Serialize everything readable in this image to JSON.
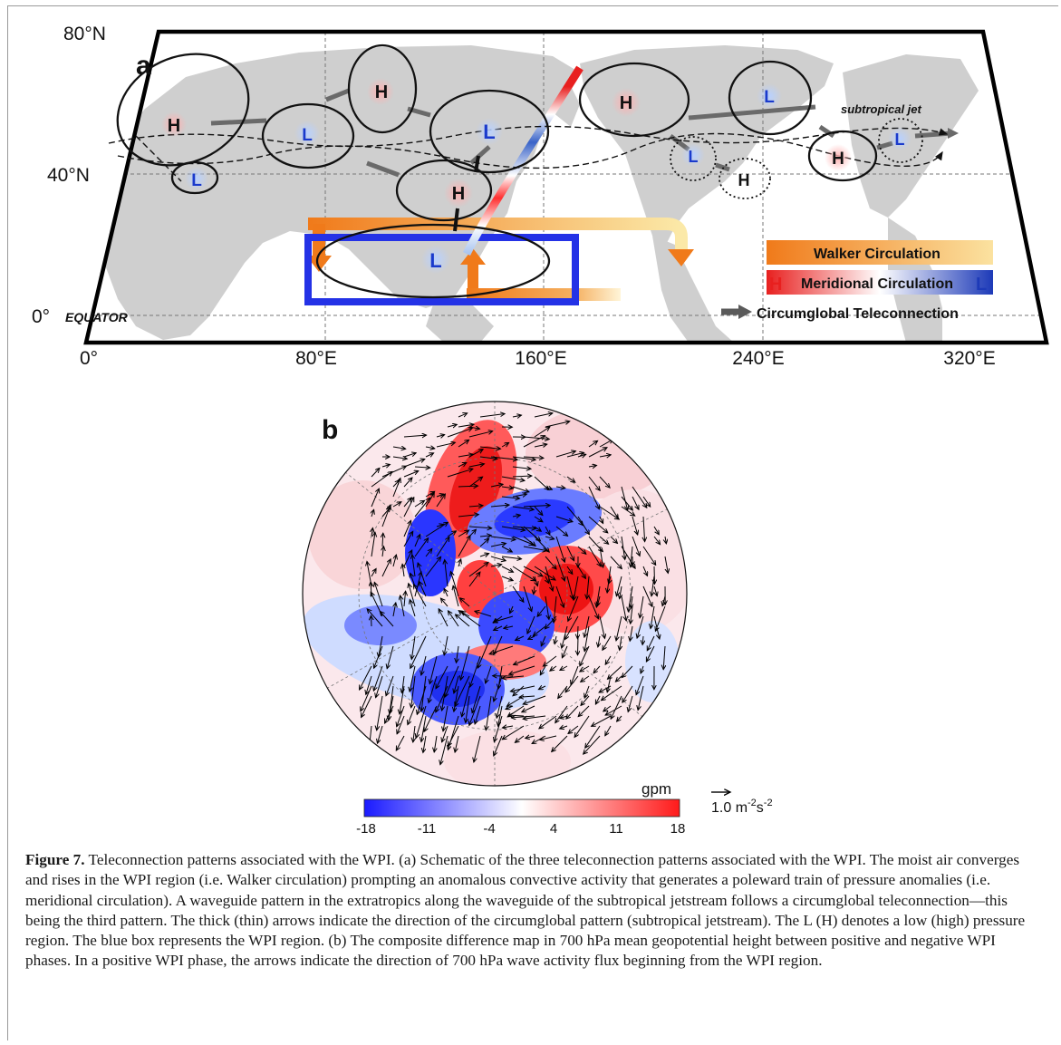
{
  "panel_a": {
    "label": "a",
    "lat_labels": [
      "80°N",
      "40°N",
      "0°"
    ],
    "lon_labels": [
      "0°",
      "80°E",
      "160°E",
      "240°E",
      "320°E"
    ],
    "equator_label": "EQUATOR",
    "jet_label": "subtropical jet",
    "centers": [
      "H",
      "L",
      "H",
      "L",
      "L",
      "H",
      "H",
      "L",
      "L",
      "H",
      "L",
      "H",
      "L",
      "L"
    ],
    "legend": {
      "walker": "Walker Circulation",
      "meridional": "Meridional Circulation",
      "meridional_h": "H",
      "meridional_l": "L",
      "circumglobal": "Circumglobal Teleconnection"
    }
  },
  "panel_b": {
    "label": "b",
    "colorbar": {
      "unit": "gpm",
      "ticks": [
        "-18",
        "-11",
        "-4",
        "4",
        "11",
        "18"
      ],
      "colors": [
        "#1a1aff",
        "#ffffff",
        "#ff1a1a"
      ]
    },
    "vector_key": "1.0  m",
    "vector_key_sup1": "-2",
    "vector_key_mid": "s",
    "vector_key_sup2": "-2"
  },
  "caption": {
    "label": "Figure 7.",
    "text": " Teleconnection patterns associated with the WPI. (a) Schematic of the three teleconnection patterns associated with the WPI. The moist air converges and rises in the WPI region (i.e. Walker circulation) prompting an anomalous convective activity that generates a poleward train of pressure anomalies (i.e. meridional circulation). A waveguide pattern in the extratropics along the waveguide of the subtropical jetstream follows a circumglobal teleconnection—this being the third pattern. The thick (thin) arrows indicate the direction of the circumglobal pattern (subtropical jetstream). The L (H) denotes a low (high) pressure region. The blue box represents the WPI region. (b) The composite difference map in 700 hPa mean geopotential height between positive and negative WPI phases. In a positive WPI phase, the arrows indicate the direction of 700 hPa wave activity flux beginning from the WPI region."
  }
}
